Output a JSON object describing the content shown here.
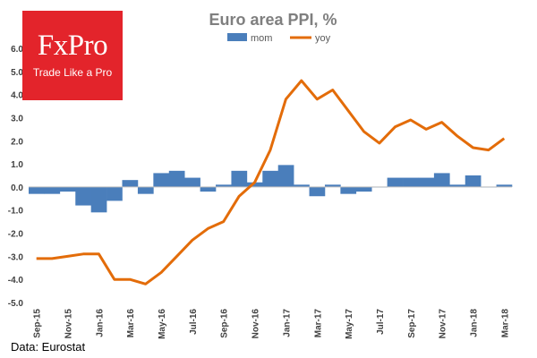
{
  "logo": {
    "brand": "FxPro",
    "tagline": "Trade Like a Pro",
    "background": "#e3242b"
  },
  "source": "Data: Eurostat",
  "colors": {
    "mom": "#4a7ebb",
    "yoy": "#e36c09",
    "title": "#7f7f7f"
  },
  "chart_data": {
    "type": "bar",
    "title": "Euro area PPI, %",
    "xlabel": "",
    "ylabel": "",
    "ylim": [
      -5.0,
      6.0
    ],
    "yticks": [
      "6.0",
      "5.0",
      "4.0",
      "3.0",
      "2.0",
      "1.0",
      "0.0",
      "-1.0",
      "-2.0",
      "-3.0",
      "-4.0",
      "-5.0"
    ],
    "legend": "top-center",
    "categories": [
      "Sep-15",
      "Oct-15",
      "Nov-15",
      "Dec-15",
      "Jan-16",
      "Feb-16",
      "Mar-16",
      "Apr-16",
      "May-16",
      "Jun-16",
      "Jul-16",
      "Aug-16",
      "Sep-16",
      "Oct-16",
      "Nov-16",
      "Dec-16",
      "Jan-17",
      "Feb-17",
      "Mar-17",
      "Apr-17",
      "May-17",
      "Jun-17",
      "Jul-17",
      "Aug-17",
      "Sep-17",
      "Oct-17",
      "Nov-17",
      "Dec-17",
      "Jan-18",
      "Feb-18",
      "Mar-18"
    ],
    "tick_labels": [
      "Sep-15",
      "Nov-15",
      "Jan-16",
      "Mar-16",
      "May-16",
      "Jul-16",
      "Sep-16",
      "Nov-16",
      "Jan-17",
      "Mar-17",
      "May-17",
      "Jul-17",
      "Sep-17",
      "Nov-17",
      "Jan-18",
      "Mar-18"
    ],
    "series": [
      {
        "name": "mom",
        "kind": "bar",
        "values": [
          -0.3,
          -0.3,
          -0.2,
          -0.8,
          -1.1,
          -0.6,
          0.3,
          -0.3,
          0.6,
          0.7,
          0.4,
          -0.2,
          0.1,
          0.7,
          0.2,
          0.7,
          0.95,
          0.1,
          -0.4,
          0.1,
          -0.3,
          -0.2,
          0.0,
          0.4,
          0.4,
          0.4,
          0.6,
          0.1,
          0.5,
          0.0,
          0.1
        ]
      },
      {
        "name": "yoy",
        "kind": "line",
        "values": [
          -3.1,
          -3.1,
          -3.0,
          -2.9,
          -2.9,
          -4.0,
          -4.0,
          -4.2,
          -3.7,
          -3.0,
          -2.3,
          -1.8,
          -1.5,
          -0.4,
          0.2,
          1.6,
          3.8,
          4.6,
          3.8,
          4.2,
          3.3,
          2.4,
          1.9,
          2.6,
          2.9,
          2.5,
          2.8,
          2.2,
          1.7,
          1.6,
          2.1
        ]
      }
    ]
  }
}
